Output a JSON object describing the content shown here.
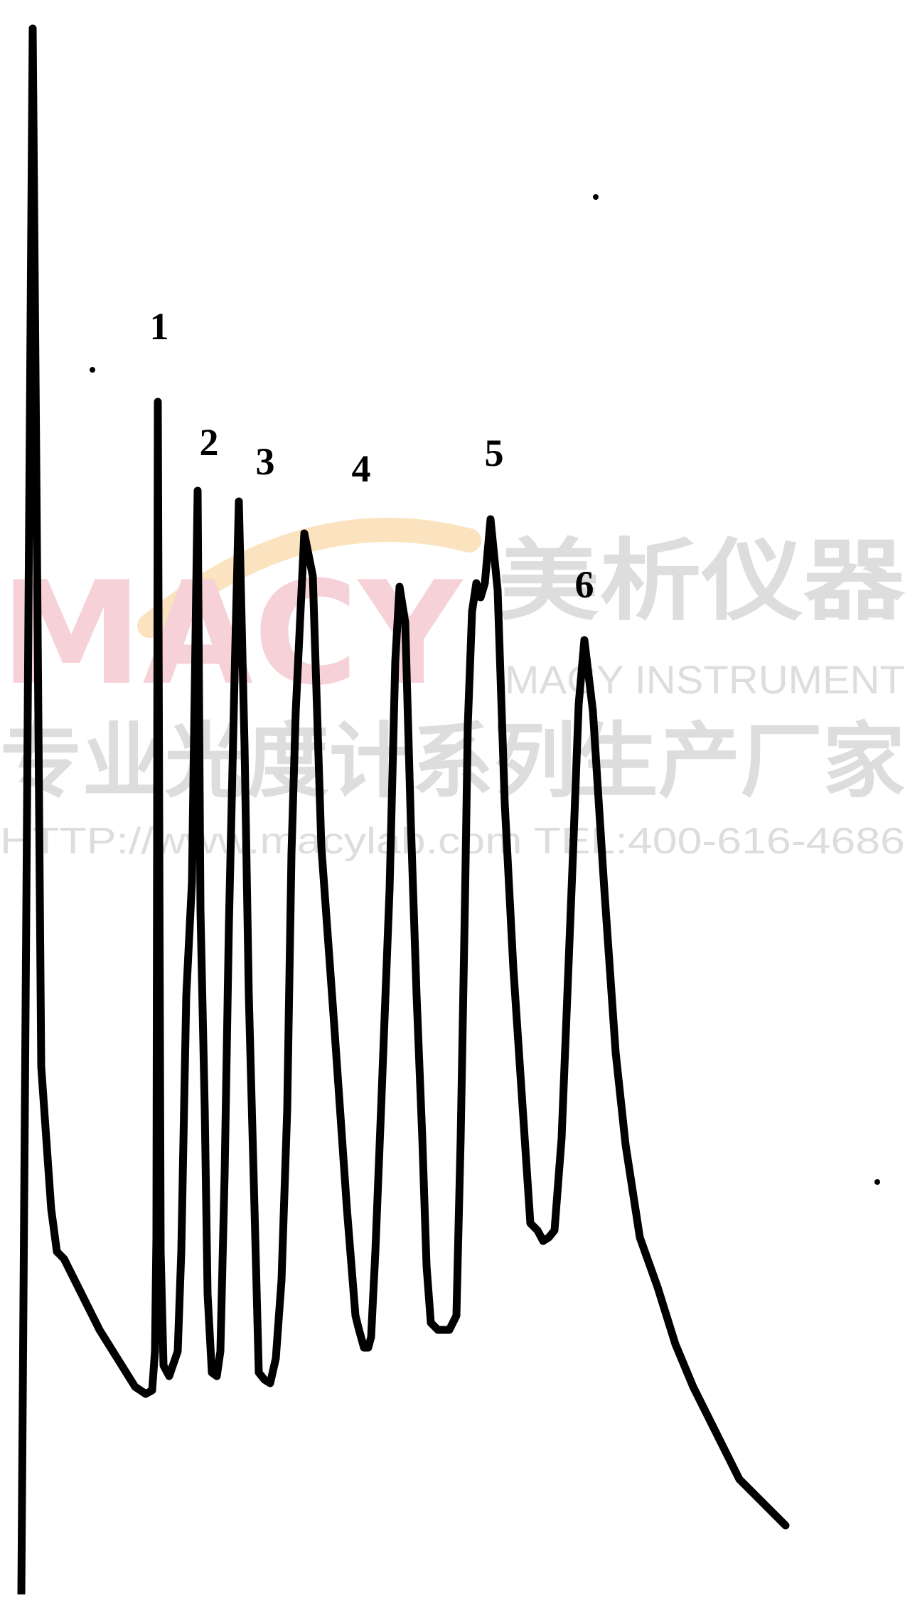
{
  "watermark": {
    "logo_text": "MACY",
    "company_cn": "美析仪器",
    "company_en": "MACY INSTRUMENT",
    "slogan_cn": "专业光度计系列生产厂家",
    "contact": "HTTP://www.macylab.com  TEL:400-616-4686",
    "colors": {
      "logo": "#f6d2d8",
      "arc": "#fbe3bf",
      "text": "#dddddd"
    }
  },
  "chart_data": {
    "type": "line",
    "title": "",
    "xlabel": "",
    "ylabel": "",
    "axes_shown": false,
    "grid": false,
    "legend": "none",
    "xlim": [
      0,
      1273
    ],
    "ylim": [
      0,
      2242
    ],
    "line_color": "#000000",
    "series": [
      {
        "x": [
          30,
          46,
          58,
          72,
          80,
          90,
          100,
          120,
          140,
          165,
          190,
          205,
          214,
          218,
          220,
          222,
          226,
          230,
          238,
          250,
          255,
          262,
          270,
          278,
          282,
          288,
          292,
          298,
          305,
          310,
          316,
          322,
          330,
          336,
          344,
          350,
          358,
          364,
          372,
          380,
          388,
          396,
          404,
          410,
          416,
          428,
          440,
          452,
          470,
          488,
          500,
          505,
          512,
          518,
          522,
          528,
          536,
          548,
          556,
          562,
          570,
          578,
          586,
          594,
          600,
          606,
          616,
          632,
          642,
          648,
          654,
          658,
          664,
          670,
          676,
          682,
          690,
          700,
          710,
          722,
          736,
          746,
          756,
          764,
          772,
          780,
          790,
          798,
          806,
          814,
          822,
          834,
          850,
          866,
          880,
          900,
          925,
          950,
          975,
          1005,
          1040,
          1080,
          1105
        ],
        "y": [
          2242,
          40,
          1500,
          1700,
          1760,
          1770,
          1790,
          1830,
          1870,
          1910,
          1950,
          1960,
          1955,
          1900,
          1740,
          565,
          1760,
          1920,
          1935,
          1900,
          1760,
          1400,
          1240,
          690,
          1280,
          1560,
          1820,
          1930,
          1935,
          1900,
          1650,
          1300,
          950,
          705,
          1050,
          1400,
          1700,
          1930,
          1940,
          1945,
          1910,
          1800,
          1560,
          1200,
          1000,
          750,
          810,
          1190,
          1440,
          1700,
          1850,
          1870,
          1895,
          1895,
          1880,
          1760,
          1560,
          1250,
          930,
          825,
          875,
          1160,
          1400,
          1600,
          1780,
          1860,
          1870,
          1870,
          1850,
          1600,
          1270,
          1020,
          860,
          820,
          840,
          820,
          730,
          830,
          1130,
          1360,
          1570,
          1720,
          1730,
          1745,
          1740,
          1730,
          1600,
          1400,
          1200,
          990,
          900,
          1000,
          1250,
          1480,
          1610,
          1740,
          1810,
          1890,
          1950,
          2010,
          2080,
          2120,
          2145
        ]
      }
    ],
    "annotations": [
      {
        "text": "1",
        "x": 224,
        "y": 477
      },
      {
        "text": "2",
        "x": 294,
        "y": 640
      },
      {
        "text": "3",
        "x": 373,
        "y": 667
      },
      {
        "text": "4",
        "x": 508,
        "y": 677
      },
      {
        "text": "5",
        "x": 695,
        "y": 655
      },
      {
        "text": "6",
        "x": 822,
        "y": 840
      }
    ],
    "artifact_dots": [
      {
        "x": 130,
        "y": 520
      },
      {
        "x": 838,
        "y": 277
      },
      {
        "x": 1234,
        "y": 1662
      }
    ]
  }
}
